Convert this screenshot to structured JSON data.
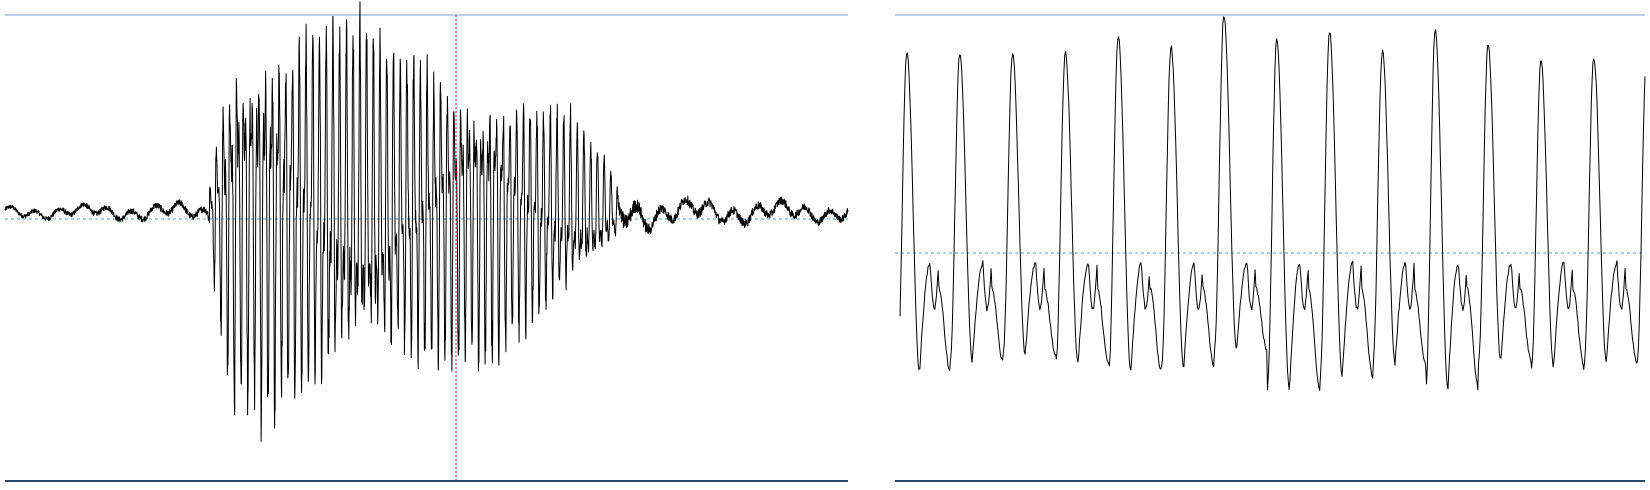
{
  "chart_data": [
    {
      "type": "line",
      "panel": "full-waveform",
      "x_range": [
        0,
        1
      ],
      "ylim": [
        -1,
        1
      ],
      "cursor_x": 0.535,
      "amplitude_envelope": [
        [
          0.0,
          0.03
        ],
        [
          0.24,
          0.05
        ],
        [
          0.25,
          0.45
        ],
        [
          0.27,
          0.95
        ],
        [
          0.29,
          1.0
        ],
        [
          0.36,
          1.0
        ],
        [
          0.43,
          0.9
        ],
        [
          0.5,
          0.78
        ],
        [
          0.58,
          0.7
        ],
        [
          0.65,
          0.55
        ],
        [
          0.7,
          0.35
        ],
        [
          0.73,
          0.12
        ],
        [
          0.78,
          0.07
        ],
        [
          1.0,
          0.05
        ]
      ],
      "colors": {
        "trace": "#000000",
        "cursor": "#d23b2f",
        "guide": "#8fb4e0",
        "baseline": "#2c4a6e"
      }
    },
    {
      "type": "line",
      "panel": "zoomed-waveform",
      "x_range": [
        0,
        1
      ],
      "ylim": [
        -1,
        1
      ],
      "cycles": 14,
      "peaks": [
        0.82,
        0.82,
        0.82,
        0.82,
        0.9,
        0.85,
        1.0,
        0.88,
        0.92,
        0.83,
        0.93,
        0.86,
        0.78,
        0.8
      ],
      "troughs": [
        -0.7,
        -0.65,
        -0.62,
        -0.66,
        -0.7,
        -0.68,
        -0.6,
        -0.78,
        -0.72,
        -0.66,
        -0.78,
        -0.65,
        -0.68,
        -0.65
      ],
      "colors": {
        "trace": "#000000",
        "zero": "#5b9bd5",
        "guide": "#8fb4e0",
        "baseline": "#2c4a6e"
      }
    }
  ]
}
